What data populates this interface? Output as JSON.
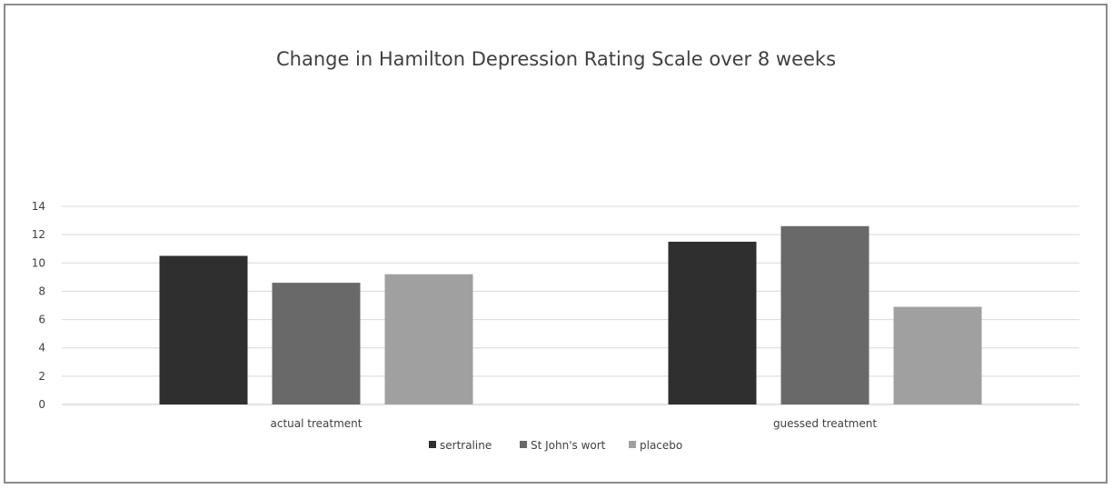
{
  "chart_data": {
    "type": "bar",
    "title": "Change in Hamilton Depression Rating Scale over 8 weeks",
    "categories": [
      "actual treatment",
      "guessed treatment"
    ],
    "series": [
      {
        "name": "sertraline",
        "values": [
          10.5,
          11.5
        ],
        "color": "#2f2f2f"
      },
      {
        "name": "St John's wort",
        "values": [
          8.6,
          12.6
        ],
        "color": "#696969"
      },
      {
        "name": "placebo",
        "values": [
          9.2,
          6.9
        ],
        "color": "#a0a0a0"
      }
    ],
    "ylim": [
      0,
      14
    ],
    "yticks": [
      0,
      2,
      4,
      6,
      8,
      10,
      12,
      14
    ],
    "grid": true,
    "legend": "bottom"
  }
}
